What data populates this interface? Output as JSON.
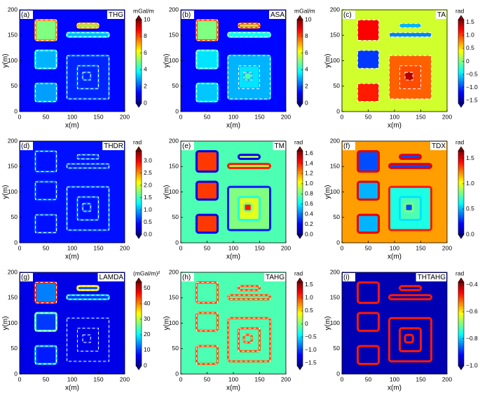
{
  "chart_data": [
    {
      "type": "heatmap",
      "panel_label": "(a)",
      "title": "THG",
      "colorbar_label": "mGal/m",
      "xlabel": "x(m)",
      "ylabel": "y(m)",
      "xlim": [
        0,
        200
      ],
      "ylim": [
        0,
        200
      ],
      "xticks": [
        0,
        50,
        100,
        150,
        200
      ],
      "yticks": [
        0,
        50,
        100,
        150,
        200
      ],
      "colormap": "jet",
      "clim": [
        0,
        10
      ],
      "cticks": [
        0,
        2,
        4,
        6,
        8,
        10
      ]
    },
    {
      "type": "heatmap",
      "panel_label": "(b)",
      "title": "ASA",
      "colorbar_label": "mGal/m",
      "xlabel": "x(m)",
      "ylabel": "y(m)",
      "xlim": [
        0,
        200
      ],
      "ylim": [
        0,
        200
      ],
      "xticks": [
        0,
        50,
        100,
        150,
        200
      ],
      "yticks": [
        0,
        50,
        100,
        150,
        200
      ],
      "colormap": "jet",
      "clim": [
        0,
        10
      ],
      "cticks": [
        0,
        2,
        4,
        6,
        8,
        10
      ]
    },
    {
      "type": "heatmap",
      "panel_label": "(c)",
      "title": "TA",
      "colorbar_label": "rad",
      "xlabel": "x(m)",
      "ylabel": "y(m)",
      "xlim": [
        0,
        200
      ],
      "ylim": [
        0,
        200
      ],
      "xticks": [
        0,
        50,
        100,
        150,
        200
      ],
      "yticks": [
        0,
        50,
        100,
        150,
        200
      ],
      "colormap": "jet",
      "clim": [
        -1.6,
        1.6
      ],
      "cticks": [
        1.5,
        {
          "value": 1,
          "label": "1.0"
        },
        0.5,
        0,
        {
          "value": -0.5,
          "label": "−0.5"
        },
        {
          "value": -1,
          "label": "−1.0"
        },
        {
          "value": -1.5,
          "label": "−1.5"
        }
      ]
    },
    {
      "type": "heatmap",
      "panel_label": "(d)",
      "title": "THDR",
      "colorbar_label": "rad",
      "xlabel": "x(m)",
      "ylabel": "y(m)",
      "xlim": [
        0,
        200
      ],
      "ylim": [
        0,
        200
      ],
      "xticks": [
        0,
        50,
        100,
        150,
        200
      ],
      "yticks": [
        0,
        50,
        100,
        150,
        200
      ],
      "colormap": "jet",
      "clim": [
        0,
        3.4
      ],
      "cticks": [
        {
          "value": 0,
          "label": "0.0"
        },
        0.5,
        {
          "value": 1,
          "label": "1.0"
        },
        1.5,
        {
          "value": 2,
          "label": "2.0"
        },
        2.5,
        {
          "value": 3,
          "label": "3.0"
        }
      ]
    },
    {
      "type": "heatmap",
      "panel_label": "(e)",
      "title": "TM",
      "colorbar_label": "rad",
      "xlabel": "x(m)",
      "ylabel": "y(m)",
      "xlim": [
        0,
        200
      ],
      "ylim": [
        0,
        200
      ],
      "xticks": [
        0,
        50,
        100,
        150,
        200
      ],
      "yticks": [
        0,
        50,
        100,
        150,
        200
      ],
      "colormap": "jet",
      "clim": [
        0,
        1.65
      ],
      "cticks": [
        {
          "value": 0,
          "label": "0.0"
        },
        0.2,
        0.4,
        0.6,
        0.8,
        {
          "value": 1,
          "label": "1.0"
        },
        1.2,
        1.4,
        1.6
      ]
    },
    {
      "type": "heatmap",
      "panel_label": "(f)",
      "title": "TDX",
      "colorbar_label": "rad",
      "xlabel": "x(m)",
      "ylabel": "y(m)",
      "xlim": [
        0,
        200
      ],
      "ylim": [
        0,
        200
      ],
      "xticks": [
        0,
        50,
        100,
        150,
        200
      ],
      "yticks": [
        0,
        50,
        100,
        150,
        200
      ],
      "colormap": "jet",
      "clim": [
        0,
        1.65
      ],
      "cticks": [
        {
          "value": 0,
          "label": "0.0"
        },
        0.5,
        {
          "value": 1,
          "label": "1.0"
        },
        1.5
      ]
    },
    {
      "type": "heatmap",
      "panel_label": "(g)",
      "title": "LAMDA",
      "colorbar_label": "(mGal/m)²",
      "xlabel": "x(m)",
      "ylabel": "y(m)",
      "xlim": [
        0,
        200
      ],
      "ylim": [
        0,
        200
      ],
      "xticks": [
        0,
        50,
        100,
        150,
        200
      ],
      "yticks": [
        0,
        50,
        100,
        150,
        200
      ],
      "colormap": "jet",
      "clim": [
        0,
        54
      ],
      "cticks": [
        0,
        10,
        20,
        30,
        40,
        50
      ]
    },
    {
      "type": "heatmap",
      "panel_label": "(h)",
      "title": "TAHG",
      "colorbar_label": "rad",
      "xlabel": "x(m)",
      "ylabel": "y(m)",
      "xlim": [
        0,
        200
      ],
      "ylim": [
        0,
        200
      ],
      "xticks": [
        0,
        50,
        100,
        150,
        200
      ],
      "yticks": [
        0,
        50,
        100,
        150,
        200
      ],
      "colormap": "jet",
      "clim": [
        -1.6,
        1.6
      ],
      "cticks": [
        1.5,
        {
          "value": 1,
          "label": "1.0"
        },
        0.5,
        0,
        {
          "value": -0.5,
          "label": "−0.5"
        },
        {
          "value": -1,
          "label": "−1.0"
        },
        {
          "value": -1.5,
          "label": "−1.5"
        }
      ]
    },
    {
      "type": "heatmap",
      "panel_label": "(i)",
      "title": "THTAHG",
      "colorbar_label": "rad",
      "xlabel": "x(m)",
      "ylabel": "y(m)",
      "xlim": [
        0,
        200
      ],
      "ylim": [
        0,
        200
      ],
      "xticks": [
        0,
        50,
        100,
        150,
        200
      ],
      "yticks": [
        0,
        50,
        100,
        150,
        200
      ],
      "colormap": "jet",
      "clim": [
        -1.0,
        -0.38
      ],
      "cticks": [
        {
          "value": -0.4,
          "label": "−0.4"
        },
        {
          "value": -0.6,
          "label": "−0.6"
        },
        {
          "value": -0.8,
          "label": "−0.8"
        },
        {
          "value": -1,
          "label": "−1.0"
        }
      ]
    }
  ]
}
